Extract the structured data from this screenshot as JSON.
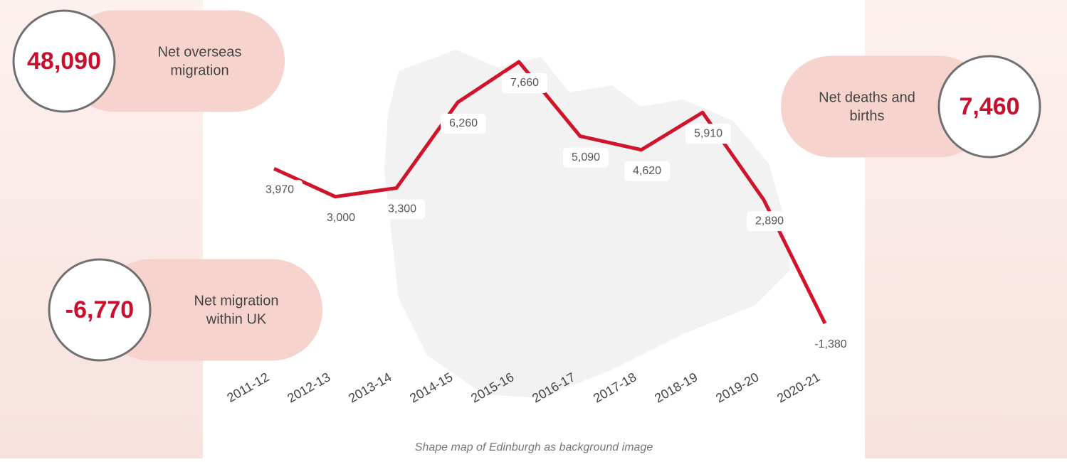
{
  "chart_data": {
    "type": "line",
    "categories": [
      "2011-12",
      "2012-13",
      "2013-14",
      "2014-15",
      "2015-16",
      "2016-17",
      "2017-18",
      "2018-19",
      "2019-20",
      "2020-21"
    ],
    "values": [
      3970,
      3000,
      3300,
      6260,
      7660,
      5090,
      4620,
      5910,
      2890,
      -1380
    ],
    "value_labels": [
      "3,970",
      "3,000",
      "3,300",
      "6,260",
      "7,660",
      "5,090",
      "4,620",
      "5,910",
      "2,890",
      "-1,380"
    ],
    "color": "#d0142c",
    "caption": "Shape map of Edinburgh as background image"
  },
  "callouts": [
    {
      "value": "48,090",
      "text": [
        "Net overseas",
        "migration"
      ]
    },
    {
      "value": "-6,770",
      "text": [
        "Net migration",
        "within UK"
      ]
    },
    {
      "value": "7,460",
      "text": [
        "Net deaths and",
        "births"
      ]
    }
  ]
}
